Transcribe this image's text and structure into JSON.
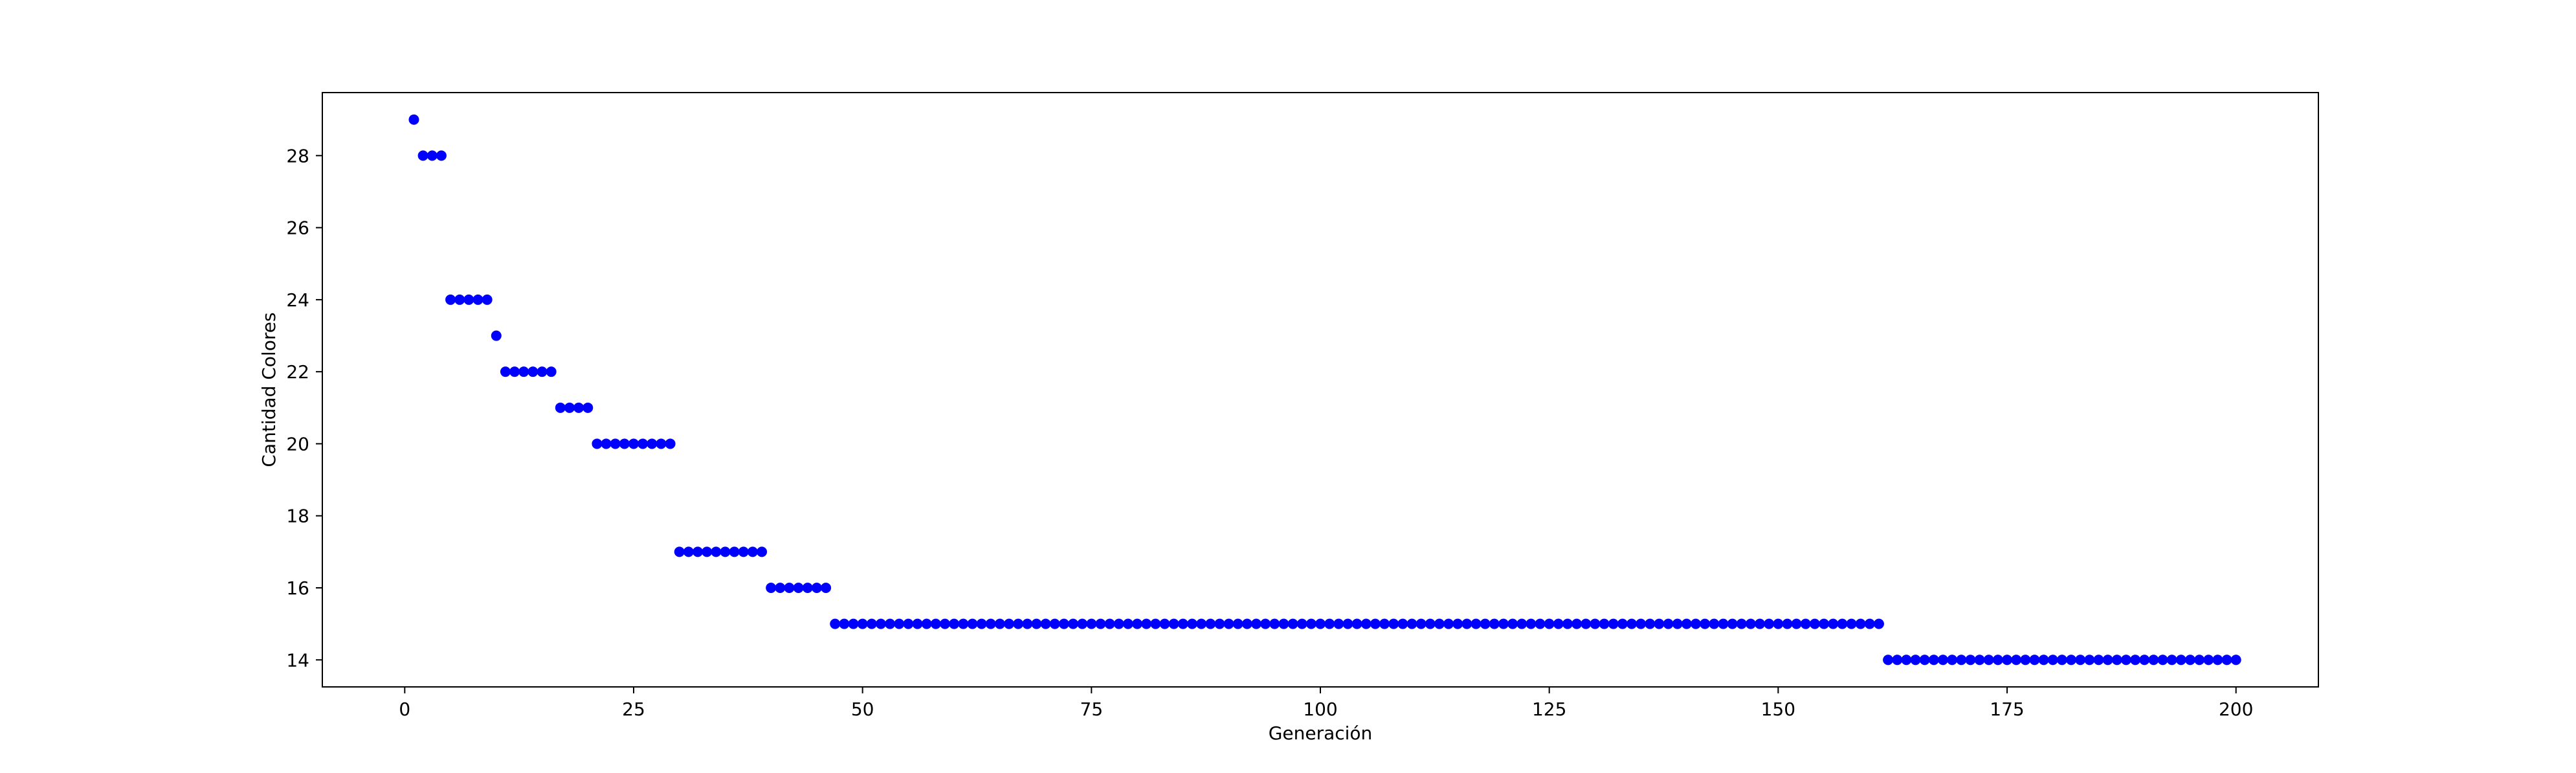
{
  "chart_data": {
    "type": "scatter",
    "title": "",
    "xlabel": "Generación",
    "ylabel": "Cantidad Colores",
    "xlim": [
      -9,
      209
    ],
    "ylim": [
      13.25,
      29.75
    ],
    "xticks": [
      0,
      25,
      50,
      75,
      100,
      125,
      150,
      175,
      200
    ],
    "yticks": [
      14,
      16,
      18,
      20,
      22,
      24,
      26,
      28
    ],
    "grid": false,
    "marker_color": "#0000ff",
    "segments": [
      {
        "from": 1,
        "to": 1,
        "y": 29
      },
      {
        "from": 2,
        "to": 4,
        "y": 28
      },
      {
        "from": 5,
        "to": 9,
        "y": 24
      },
      {
        "from": 10,
        "to": 10,
        "y": 23
      },
      {
        "from": 11,
        "to": 16,
        "y": 22
      },
      {
        "from": 17,
        "to": 20,
        "y": 21
      },
      {
        "from": 21,
        "to": 29,
        "y": 20
      },
      {
        "from": 30,
        "to": 39,
        "y": 17
      },
      {
        "from": 40,
        "to": 46,
        "y": 16
      },
      {
        "from": 47,
        "to": 161,
        "y": 15
      },
      {
        "from": 162,
        "to": 200,
        "y": 14
      }
    ]
  }
}
